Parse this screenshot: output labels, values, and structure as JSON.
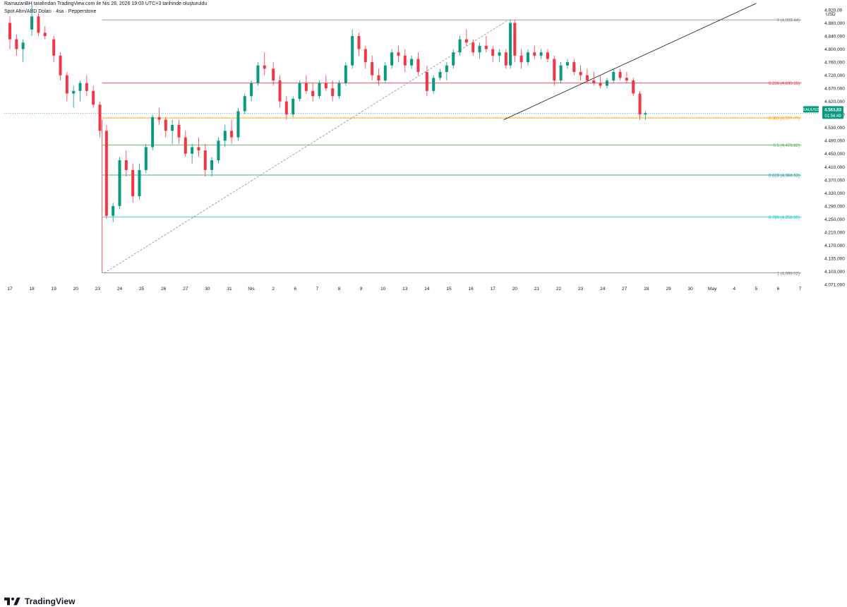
{
  "header": {
    "attribution": "RamazanBH tarafından TradingView.com ile Nis 28, 2026 19:03 UTC+3 tarihinde oluşturuldu",
    "symbol_line": "Spot Altın/ABD Doları · 4sa · Pepperstone"
  },
  "footer": {
    "brand": "TradingView"
  },
  "colors": {
    "up": "#089981",
    "down": "#f23645",
    "fib_0": "#787b86",
    "fib_0236": "#f23645",
    "fib_0382": "#ff9800",
    "fib_05": "#4caf50",
    "fib_0618": "#089981",
    "fib_0786": "#00bcd4",
    "fib_1": "#787b86",
    "price_tag": "#089981"
  },
  "chart_data": {
    "type": "candlestick",
    "symbol": "XAUUSD",
    "currency": "USD",
    "last_price": "4.583,83",
    "countdown": "01:56:49",
    "ylim": [
      4071,
      4940
    ],
    "y_ticks": [
      "4.920,00",
      "4.880,000",
      "4.840,000",
      "4.800,000",
      "4.760,000",
      "4.720,000",
      "4.670,000",
      "4.620,000",
      "4.580,000",
      "4.530,000",
      "4.490,000",
      "4.450,000",
      "4.410,000",
      "4.370,000",
      "4.330,000",
      "4.290,000",
      "4.250,000",
      "4.210,000",
      "4.170,000",
      "4.135,000",
      "4.103,000",
      "4.071,000"
    ],
    "y_tick_values": [
      4920,
      4880,
      4840,
      4800,
      4760,
      4720,
      4670,
      4620,
      4580,
      4530,
      4490,
      4450,
      4410,
      4370,
      4330,
      4290,
      4250,
      4210,
      4170,
      4135,
      4103,
      4071
    ],
    "x_labels": [
      "17",
      "18",
      "19",
      "20",
      "23",
      "24",
      "25",
      "26",
      "27",
      "30",
      "31",
      "Nis",
      "2",
      "6",
      "7",
      "8",
      "9",
      "10",
      "13",
      "14",
      "15",
      "16",
      "17",
      "20",
      "21",
      "22",
      "23",
      "24",
      "27",
      "28",
      "29",
      "30",
      "May",
      "4",
      "5",
      "6",
      "7"
    ],
    "fibonacci": [
      {
        "ratio": "0",
        "label": "0 (4,889.44)",
        "price": 4889.44,
        "color_key": "fib_0"
      },
      {
        "ratio": "0.236",
        "label": "0.236 (4,690.15)",
        "price": 4690.15,
        "color_key": "fib_0236"
      },
      {
        "ratio": "0.382",
        "label": "0.382 (4,5??.??)",
        "price": 4566.86,
        "color_key": "fib_0382"
      },
      {
        "ratio": "0.5",
        "label": "0.5 (4,476.82)",
        "price": 4476.82,
        "color_key": "fib_05"
      },
      {
        "ratio": "0.618",
        "label": "0.618 (4,384.63)",
        "price": 4384.63,
        "color_key": "fib_0618"
      },
      {
        "ratio": "0.786",
        "label": "0.786 (4,256.65)",
        "price": 4256.65,
        "color_key": "fib_0786"
      },
      {
        "ratio": "1",
        "label": "1 (4,099.02)",
        "price": 4099.02,
        "color_key": "fib_1"
      }
    ],
    "trendline": {
      "x1": 22.5,
      "y1": 4560,
      "x2": 34,
      "y2": 4940
    },
    "fib_anchor_line": {
      "x1": 4.3,
      "y1": 4099,
      "x2": 22.7,
      "y2": 4889
    },
    "candles": [
      [
        0,
        4880,
        4900,
        4800,
        4830
      ],
      [
        0.3,
        4830,
        4845,
        4780,
        4800
      ],
      [
        0.6,
        4800,
        4830,
        4760,
        4820
      ],
      [
        1.0,
        4860,
        4940,
        4840,
        4900
      ],
      [
        1.3,
        4900,
        4910,
        4840,
        4850
      ],
      [
        1.6,
        4850,
        4870,
        4830,
        4840
      ],
      [
        2.0,
        4830,
        4840,
        4760,
        4780
      ],
      [
        2.3,
        4780,
        4790,
        4700,
        4720
      ],
      [
        2.6,
        4720,
        4730,
        4620,
        4650
      ],
      [
        2.9,
        4650,
        4680,
        4600,
        4660
      ],
      [
        3.2,
        4660,
        4700,
        4620,
        4690
      ],
      [
        3.5,
        4690,
        4720,
        4640,
        4660
      ],
      [
        3.8,
        4660,
        4680,
        4600,
        4610
      ],
      [
        4.1,
        4610,
        4620,
        4500,
        4520
      ],
      [
        4.4,
        4520,
        4540,
        4250,
        4260
      ],
      [
        4.7,
        4260,
        4300,
        4240,
        4290
      ],
      [
        5.0,
        4290,
        4440,
        4280,
        4430
      ],
      [
        5.3,
        4430,
        4460,
        4380,
        4400
      ],
      [
        5.6,
        4400,
        4420,
        4300,
        4320
      ],
      [
        5.9,
        4320,
        4420,
        4310,
        4400
      ],
      [
        6.2,
        4400,
        4480,
        4390,
        4470
      ],
      [
        6.5,
        4470,
        4580,
        4460,
        4570
      ],
      [
        6.8,
        4570,
        4600,
        4540,
        4560
      ],
      [
        7.1,
        4560,
        4570,
        4500,
        4520
      ],
      [
        7.4,
        4520,
        4560,
        4480,
        4540
      ],
      [
        7.7,
        4540,
        4560,
        4480,
        4500
      ],
      [
        8.0,
        4500,
        4520,
        4440,
        4450
      ],
      [
        8.3,
        4450,
        4480,
        4420,
        4470
      ],
      [
        8.6,
        4470,
        4500,
        4440,
        4460
      ],
      [
        8.9,
        4460,
        4480,
        4380,
        4400
      ],
      [
        9.2,
        4400,
        4440,
        4380,
        4430
      ],
      [
        9.5,
        4430,
        4500,
        4420,
        4490
      ],
      [
        9.8,
        4490,
        4540,
        4470,
        4520
      ],
      [
        10.1,
        4520,
        4560,
        4480,
        4500
      ],
      [
        10.4,
        4500,
        4600,
        4490,
        4590
      ],
      [
        10.7,
        4590,
        4650,
        4580,
        4640
      ],
      [
        11.0,
        4640,
        4700,
        4620,
        4690
      ],
      [
        11.3,
        4690,
        4760,
        4680,
        4750
      ],
      [
        11.6,
        4750,
        4790,
        4720,
        4740
      ],
      [
        12.0,
        4740,
        4760,
        4680,
        4700
      ],
      [
        12.3,
        4700,
        4720,
        4600,
        4620
      ],
      [
        12.6,
        4620,
        4640,
        4560,
        4580
      ],
      [
        12.9,
        4580,
        4640,
        4570,
        4630
      ],
      [
        13.2,
        4630,
        4700,
        4620,
        4690
      ],
      [
        13.5,
        4690,
        4720,
        4650,
        4660
      ],
      [
        13.8,
        4660,
        4690,
        4620,
        4640
      ],
      [
        14.1,
        4640,
        4700,
        4630,
        4690
      ],
      [
        14.4,
        4690,
        4720,
        4660,
        4670
      ],
      [
        14.7,
        4670,
        4700,
        4620,
        4640
      ],
      [
        15.0,
        4640,
        4700,
        4630,
        4690
      ],
      [
        15.3,
        4690,
        4760,
        4680,
        4750
      ],
      [
        15.6,
        4750,
        4860,
        4740,
        4840
      ],
      [
        15.9,
        4840,
        4850,
        4780,
        4800
      ],
      [
        16.2,
        4800,
        4810,
        4740,
        4760
      ],
      [
        16.5,
        4760,
        4780,
        4700,
        4720
      ],
      [
        16.8,
        4720,
        4740,
        4680,
        4700
      ],
      [
        17.1,
        4700,
        4760,
        4690,
        4750
      ],
      [
        17.4,
        4750,
        4800,
        4740,
        4790
      ],
      [
        17.7,
        4790,
        4810,
        4760,
        4780
      ],
      [
        18.0,
        4780,
        4800,
        4730,
        4750
      ],
      [
        18.3,
        4750,
        4780,
        4740,
        4770
      ],
      [
        18.6,
        4770,
        4790,
        4720,
        4730
      ],
      [
        19.0,
        4730,
        4750,
        4640,
        4660
      ],
      [
        19.3,
        4660,
        4720,
        4650,
        4710
      ],
      [
        19.6,
        4710,
        4740,
        4700,
        4730
      ],
      [
        19.9,
        4730,
        4760,
        4700,
        4750
      ],
      [
        20.2,
        4750,
        4800,
        4740,
        4790
      ],
      [
        20.5,
        4790,
        4840,
        4780,
        4830
      ],
      [
        20.8,
        4830,
        4860,
        4810,
        4820
      ],
      [
        21.1,
        4820,
        4830,
        4780,
        4790
      ],
      [
        21.4,
        4790,
        4820,
        4770,
        4810
      ],
      [
        21.7,
        4810,
        4840,
        4790,
        4800
      ],
      [
        22.0,
        4800,
        4810,
        4760,
        4780
      ],
      [
        22.3,
        4780,
        4800,
        4760,
        4790
      ],
      [
        22.6,
        4790,
        4800,
        4740,
        4750
      ],
      [
        22.8,
        4750,
        4890,
        4740,
        4880
      ],
      [
        23.0,
        4880,
        4890,
        4760,
        4780
      ],
      [
        23.3,
        4780,
        4800,
        4740,
        4760
      ],
      [
        23.6,
        4760,
        4800,
        4750,
        4790
      ],
      [
        23.9,
        4790,
        4810,
        4770,
        4780
      ],
      [
        24.2,
        4780,
        4800,
        4770,
        4790
      ],
      [
        24.5,
        4790,
        4800,
        4760,
        4770
      ],
      [
        24.8,
        4770,
        4780,
        4680,
        4700
      ],
      [
        25.1,
        4700,
        4760,
        4690,
        4750
      ],
      [
        25.4,
        4750,
        4770,
        4740,
        4760
      ],
      [
        25.7,
        4760,
        4770,
        4720,
        4730
      ],
      [
        26.0,
        4730,
        4750,
        4700,
        4720
      ],
      [
        26.3,
        4720,
        4740,
        4690,
        4700
      ],
      [
        26.6,
        4700,
        4730,
        4680,
        4690
      ],
      [
        26.9,
        4690,
        4720,
        4670,
        4680
      ],
      [
        27.2,
        4680,
        4710,
        4670,
        4700
      ],
      [
        27.5,
        4700,
        4740,
        4690,
        4730
      ],
      [
        27.8,
        4730,
        4740,
        4700,
        4710
      ],
      [
        28.1,
        4710,
        4730,
        4690,
        4700
      ],
      [
        28.4,
        4700,
        4710,
        4640,
        4650
      ],
      [
        28.7,
        4650,
        4660,
        4560,
        4580
      ],
      [
        28.95,
        4580,
        4590,
        4560,
        4584
      ]
    ]
  }
}
